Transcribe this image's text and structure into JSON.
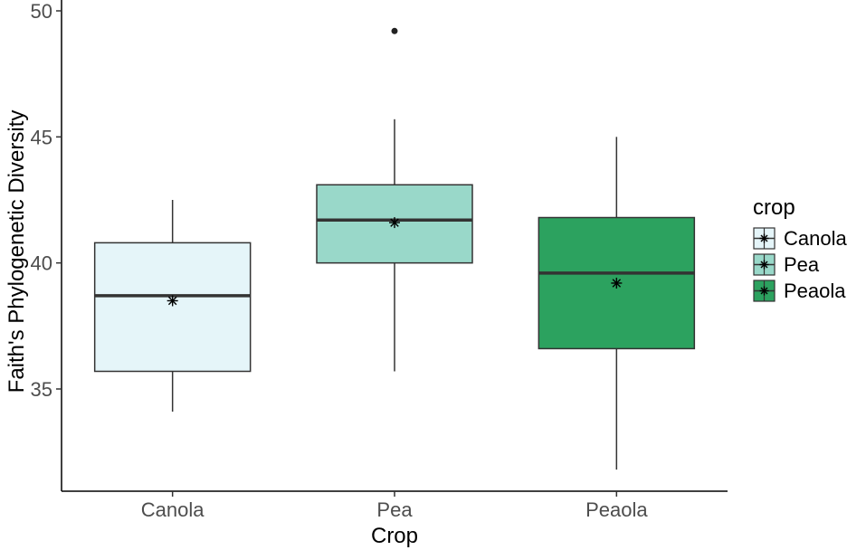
{
  "chart_data": {
    "type": "boxplot",
    "xlabel": "Crop",
    "ylabel": "Faith's Phylogenetic Diversity",
    "categories": [
      "Canola",
      "Pea",
      "Peaola"
    ],
    "ylim": [
      30.5,
      50
    ],
    "yticks": [
      35,
      40,
      45,
      50
    ],
    "grid": false,
    "legend": {
      "title": "crop",
      "placement": "right",
      "entries": [
        "Canola",
        "Pea",
        "Peaola"
      ]
    },
    "colors": {
      "Canola": "#e5f5f9",
      "Pea": "#99d8c9",
      "Peaola": "#2ca25f"
    },
    "boxes": [
      {
        "category": "Canola",
        "whisker_low": 34.1,
        "q1": 35.7,
        "median": 38.7,
        "q3": 40.8,
        "whisker_high": 42.5,
        "mean": 38.5,
        "outliers": []
      },
      {
        "category": "Pea",
        "whisker_low": 35.7,
        "q1": 40.0,
        "median": 41.7,
        "q3": 43.1,
        "whisker_high": 45.7,
        "mean": 41.6,
        "outliers": [
          49.2
        ]
      },
      {
        "category": "Peaola",
        "whisker_low": 31.8,
        "q1": 36.6,
        "median": 39.6,
        "q3": 41.8,
        "whisker_high": 45.0,
        "mean": 39.2,
        "outliers": []
      }
    ]
  }
}
